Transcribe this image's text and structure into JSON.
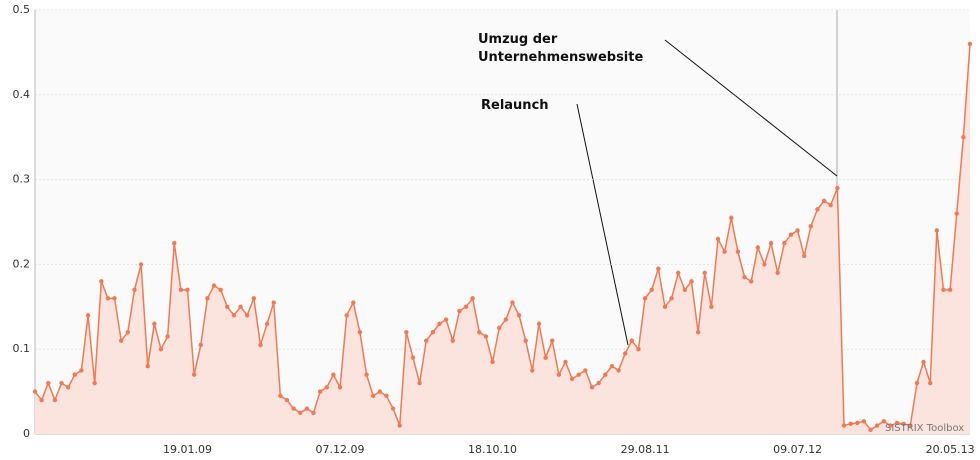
{
  "chart_data": {
    "type": "line",
    "color": "#f07a56",
    "area_color": "#fbe4de",
    "grid": true,
    "ylim": [
      0,
      0.5
    ],
    "yticks": [
      0,
      0.1,
      0.2,
      0.3,
      0.4,
      0.5
    ],
    "annotations": [
      {
        "text": [
          "Umzug der",
          "Unternehmenswebsite"
        ]
      },
      {
        "text": [
          "Relaunch"
        ]
      }
    ],
    "watermark": "SISTRIX Toolbox",
    "categories": [
      null,
      null,
      null,
      null,
      null,
      null,
      null,
      null,
      null,
      null,
      null,
      null,
      null,
      null,
      null,
      null,
      null,
      null,
      null,
      null,
      null,
      null,
      null,
      "19.01.09",
      null,
      null,
      null,
      null,
      null,
      null,
      null,
      null,
      null,
      null,
      null,
      null,
      null,
      null,
      null,
      null,
      null,
      null,
      null,
      null,
      null,
      null,
      "07.12.09",
      null,
      null,
      null,
      null,
      null,
      null,
      null,
      null,
      null,
      null,
      null,
      null,
      null,
      null,
      null,
      null,
      null,
      null,
      null,
      null,
      null,
      null,
      "18.10.10",
      null,
      null,
      null,
      null,
      null,
      null,
      null,
      null,
      null,
      null,
      null,
      null,
      null,
      null,
      null,
      null,
      null,
      null,
      null,
      null,
      null,
      null,
      "29.08.11",
      null,
      null,
      null,
      null,
      null,
      null,
      null,
      null,
      null,
      null,
      null,
      null,
      null,
      null,
      null,
      null,
      null,
      null,
      null,
      null,
      null,
      null,
      "09.07.12",
      null,
      null,
      null,
      null,
      null,
      null,
      null,
      null,
      null,
      null,
      null,
      null,
      null,
      null,
      null,
      null,
      null,
      null,
      null,
      null,
      null,
      null,
      "20.05.13",
      null,
      null,
      null
    ],
    "values": [
      0.05,
      0.04,
      0.06,
      0.04,
      0.06,
      0.055,
      0.07,
      0.075,
      0.14,
      0.06,
      0.18,
      0.16,
      0.16,
      0.11,
      0.12,
      0.17,
      0.2,
      0.08,
      0.13,
      0.1,
      0.115,
      0.225,
      0.17,
      0.17,
      0.07,
      0.105,
      0.16,
      0.175,
      0.17,
      0.15,
      0.14,
      0.15,
      0.14,
      0.16,
      0.105,
      0.13,
      0.155,
      0.045,
      0.04,
      0.03,
      0.025,
      0.03,
      0.025,
      0.05,
      0.055,
      0.07,
      0.055,
      0.14,
      0.155,
      0.12,
      0.07,
      0.045,
      0.05,
      0.045,
      0.03,
      0.01,
      0.12,
      0.09,
      0.06,
      0.11,
      0.12,
      0.13,
      0.135,
      0.11,
      0.145,
      0.15,
      0.16,
      0.12,
      0.115,
      0.085,
      0.125,
      0.135,
      0.155,
      0.14,
      0.11,
      0.075,
      0.13,
      0.09,
      0.11,
      0.07,
      0.085,
      0.065,
      0.07,
      0.075,
      0.055,
      0.06,
      0.07,
      0.08,
      0.075,
      0.095,
      0.11,
      0.1,
      0.16,
      0.17,
      0.195,
      0.15,
      0.16,
      0.19,
      0.17,
      0.18,
      0.12,
      0.19,
      0.15,
      0.23,
      0.215,
      0.255,
      0.215,
      0.185,
      0.18,
      0.22,
      0.2,
      0.225,
      0.19,
      0.225,
      0.235,
      0.24,
      0.21,
      0.245,
      0.265,
      0.275,
      0.27,
      0.29,
      0.01,
      0.012,
      0.013,
      0.015,
      0.005,
      0.01,
      0.015,
      0.01,
      0.013,
      0.012,
      0.01,
      0.06,
      0.085,
      0.06,
      0.24,
      0.17,
      0.17,
      0.26,
      0.35,
      0.46
    ]
  }
}
